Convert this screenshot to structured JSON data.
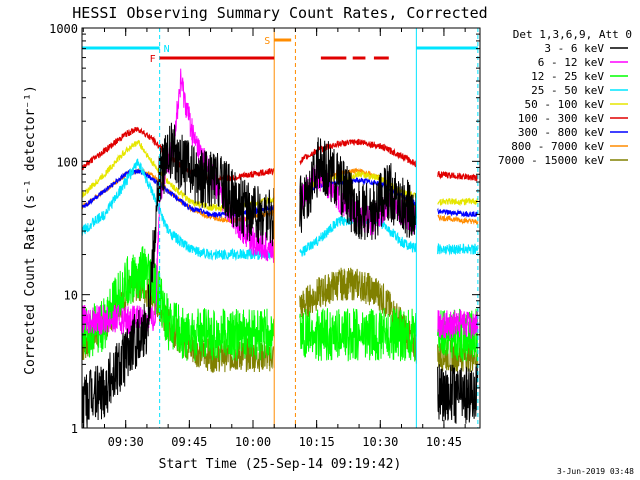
{
  "chart_data": {
    "type": "line",
    "title": "HESSI Observing Summary Count Rates, Corrected",
    "xlabel": "Start Time (25-Sep-14 09:19:42)",
    "ylabel": "Corrected Count Rate (s⁻¹ detector⁻¹)",
    "y_scale": "log",
    "ylim": [
      1,
      1000
    ],
    "xlim": [
      "09:19:42",
      "10:53:30"
    ],
    "x_ticks": [
      "09:30",
      "09:45",
      "10:00",
      "10:15",
      "10:30",
      "10:45"
    ],
    "y_ticks": [
      "1",
      "10",
      "100",
      "1000"
    ],
    "grid": false,
    "legend_position": "right",
    "legend_title": "Det 1,3,6,9, Att 0",
    "footer": "3-Jun-2019 03:48",
    "flags": [
      {
        "label": "N",
        "color": "#00e5ff",
        "segments": [
          [
            "09:19:42",
            "09:38:00"
          ],
          [
            "10:38:30",
            "10:53:00"
          ]
        ]
      },
      {
        "label": "F",
        "color": "#e00000",
        "segments": [
          [
            "09:38:00",
            "10:05:00"
          ],
          [
            "10:16:00",
            "10:22:00"
          ],
          [
            "10:23:30",
            "10:26:30"
          ],
          [
            "10:28:30",
            "10:32:00"
          ]
        ]
      },
      {
        "label": "S",
        "color": "#ff8c00",
        "segments": [
          [
            "10:05:00",
            "10:09:00"
          ]
        ]
      }
    ],
    "vertical_markers": [
      {
        "time": "09:38:00",
        "color": "#00e5ff",
        "style": "dashed"
      },
      {
        "time": "10:05:00",
        "color": "#ff8c00",
        "style": "solid"
      },
      {
        "time": "10:10:00",
        "color": "#ff8c00",
        "style": "dashed"
      },
      {
        "time": "10:38:30",
        "color": "#00e5ff",
        "style": "solid"
      },
      {
        "time": "10:53:00",
        "color": "#00e5ff",
        "style": "dashed"
      }
    ],
    "gaps": [
      [
        "10:05:00",
        "10:11:00"
      ],
      [
        "10:38:30",
        "10:43:30"
      ]
    ],
    "series": [
      {
        "name": "3 - 6 keV",
        "color": "#000000",
        "noise": 0.45,
        "points": [
          [
            "09:19:42",
            1.5
          ],
          [
            "09:25:00",
            2
          ],
          [
            "09:30:00",
            3.5
          ],
          [
            "09:35:00",
            6
          ],
          [
            "09:38:00",
            80
          ],
          [
            "09:41:00",
            120
          ],
          [
            "09:44:00",
            90
          ],
          [
            "09:48:00",
            75
          ],
          [
            "09:52:00",
            70
          ],
          [
            "09:56:00",
            50
          ],
          [
            "10:00:00",
            40
          ],
          [
            "10:05:00",
            38
          ],
          [
            "10:11:00",
            45
          ],
          [
            "10:16:00",
            100
          ],
          [
            "10:20:00",
            70
          ],
          [
            "10:24:00",
            45
          ],
          [
            "10:28:00",
            40
          ],
          [
            "10:32:00",
            60
          ],
          [
            "10:36:00",
            45
          ],
          [
            "10:38:30",
            40
          ],
          [
            "10:43:30",
            1.8
          ],
          [
            "10:48:00",
            1.8
          ],
          [
            "10:53:00",
            1.8
          ]
        ]
      },
      {
        "name": "6 - 12 keV",
        "color": "#ff00ff",
        "noise": 0.22,
        "points": [
          [
            "09:19:42",
            6.5
          ],
          [
            "09:30:00",
            6.5
          ],
          [
            "09:37:00",
            6.5
          ],
          [
            "09:38:00",
            60
          ],
          [
            "09:41:00",
            120
          ],
          [
            "09:43:00",
            400
          ],
          [
            "09:46:00",
            150
          ],
          [
            "09:50:00",
            80
          ],
          [
            "09:55:00",
            40
          ],
          [
            "10:00:00",
            25
          ],
          [
            "10:05:00",
            22
          ],
          [
            "10:11:00",
            50
          ],
          [
            "10:15:00",
            80
          ],
          [
            "10:20:00",
            55
          ],
          [
            "10:24:00",
            40
          ],
          [
            "10:28:00",
            35
          ],
          [
            "10:32:00",
            50
          ],
          [
            "10:36:00",
            40
          ],
          [
            "10:38:30",
            35
          ],
          [
            "10:43:30",
            6
          ],
          [
            "10:53:00",
            6
          ]
        ]
      },
      {
        "name": "12 - 25 keV",
        "color": "#00ff00",
        "noise": 0.4,
        "points": [
          [
            "09:19:42",
            5
          ],
          [
            "09:25:00",
            6
          ],
          [
            "09:30:00",
            12
          ],
          [
            "09:34:00",
            15
          ],
          [
            "09:38:00",
            10
          ],
          [
            "09:40:00",
            6
          ],
          [
            "09:44:00",
            5
          ],
          [
            "10:00:00",
            5
          ],
          [
            "10:05:00",
            5
          ],
          [
            "10:11:00",
            5
          ],
          [
            "10:20:00",
            5
          ],
          [
            "10:38:30",
            5
          ],
          [
            "10:43:30",
            5
          ],
          [
            "10:53:00",
            5
          ]
        ]
      },
      {
        "name": "25 - 50 keV",
        "color": "#00e5ff",
        "noise": 0.08,
        "points": [
          [
            "09:19:42",
            30
          ],
          [
            "09:25:00",
            40
          ],
          [
            "09:30:00",
            70
          ],
          [
            "09:33:00",
            100
          ],
          [
            "09:36:00",
            60
          ],
          [
            "09:40:00",
            30
          ],
          [
            "09:45:00",
            22
          ],
          [
            "09:50:00",
            20
          ],
          [
            "09:55:00",
            20
          ],
          [
            "10:00:00",
            20
          ],
          [
            "10:05:00",
            20
          ],
          [
            "10:11:00",
            20
          ],
          [
            "10:15:00",
            25
          ],
          [
            "10:20:00",
            35
          ],
          [
            "10:25:00",
            38
          ],
          [
            "10:30:00",
            35
          ],
          [
            "10:35:00",
            25
          ],
          [
            "10:38:30",
            22
          ],
          [
            "10:43:30",
            22
          ],
          [
            "10:53:00",
            22
          ]
        ]
      },
      {
        "name": "50 - 100 keV",
        "color": "#e6e600",
        "noise": 0.05,
        "points": [
          [
            "09:19:42",
            55
          ],
          [
            "09:25:00",
            80
          ],
          [
            "09:30:00",
            120
          ],
          [
            "09:33:00",
            140
          ],
          [
            "09:36:00",
            100
          ],
          [
            "09:40:00",
            70
          ],
          [
            "09:45:00",
            50
          ],
          [
            "09:50:00",
            45
          ],
          [
            "09:55:00",
            45
          ],
          [
            "10:00:00",
            48
          ],
          [
            "10:05:00",
            52
          ],
          [
            "10:11:00",
            60
          ],
          [
            "10:15:00",
            70
          ],
          [
            "10:20:00",
            75
          ],
          [
            "10:25:00",
            80
          ],
          [
            "10:30:00",
            75
          ],
          [
            "10:35:00",
            60
          ],
          [
            "10:38:30",
            55
          ],
          [
            "10:43:30",
            50
          ],
          [
            "10:53:00",
            50
          ]
        ]
      },
      {
        "name": "100 - 300 keV",
        "color": "#e00000",
        "noise": 0.05,
        "points": [
          [
            "09:19:42",
            90
          ],
          [
            "09:25:00",
            120
          ],
          [
            "09:30:00",
            160
          ],
          [
            "09:33:00",
            175
          ],
          [
            "09:36:00",
            150
          ],
          [
            "09:40:00",
            110
          ],
          [
            "09:45:00",
            85
          ],
          [
            "09:50:00",
            75
          ],
          [
            "09:55:00",
            75
          ],
          [
            "10:00:00",
            80
          ],
          [
            "10:05:00",
            85
          ],
          [
            "10:11:00",
            100
          ],
          [
            "10:15:00",
            120
          ],
          [
            "10:20:00",
            135
          ],
          [
            "10:25:00",
            140
          ],
          [
            "10:30:00",
            130
          ],
          [
            "10:35:00",
            110
          ],
          [
            "10:38:30",
            95
          ],
          [
            "10:43:30",
            80
          ],
          [
            "10:53:00",
            75
          ]
        ]
      },
      {
        "name": "300 - 800 keV",
        "color": "#0000ff",
        "noise": 0.04,
        "points": [
          [
            "09:19:42",
            45
          ],
          [
            "09:25:00",
            60
          ],
          [
            "09:30:00",
            80
          ],
          [
            "09:33:00",
            85
          ],
          [
            "09:36:00",
            75
          ],
          [
            "09:40:00",
            60
          ],
          [
            "09:45:00",
            45
          ],
          [
            "09:50:00",
            40
          ],
          [
            "09:55:00",
            40
          ],
          [
            "10:00:00",
            42
          ],
          [
            "10:05:00",
            45
          ],
          [
            "10:11:00",
            55
          ],
          [
            "10:15:00",
            65
          ],
          [
            "10:20:00",
            70
          ],
          [
            "10:25:00",
            72
          ],
          [
            "10:30:00",
            68
          ],
          [
            "10:35:00",
            55
          ],
          [
            "10:38:30",
            48
          ],
          [
            "10:43:30",
            42
          ],
          [
            "10:53:00",
            40
          ]
        ]
      },
      {
        "name": "800 - 7000 keV",
        "color": "#ff8c00",
        "noise": 0.04,
        "points": [
          [
            "09:19:42",
            45
          ],
          [
            "09:25:00",
            60
          ],
          [
            "09:30:00",
            80
          ],
          [
            "09:33:00",
            85
          ],
          [
            "09:36:00",
            80
          ],
          [
            "09:40:00",
            60
          ],
          [
            "09:45:00",
            45
          ],
          [
            "09:50:00",
            38
          ],
          [
            "09:55:00",
            36
          ],
          [
            "10:00:00",
            38
          ],
          [
            "10:05:00",
            42
          ],
          [
            "10:11:00",
            55
          ],
          [
            "10:15:00",
            70
          ],
          [
            "10:20:00",
            82
          ],
          [
            "10:25:00",
            85
          ],
          [
            "10:30:00",
            75
          ],
          [
            "10:35:00",
            55
          ],
          [
            "10:38:30",
            45
          ],
          [
            "10:43:30",
            38
          ],
          [
            "10:53:00",
            35
          ]
        ]
      },
      {
        "name": "7000 - 15000 keV",
        "color": "#808000",
        "noise": 0.25,
        "points": [
          [
            "09:19:42",
            4
          ],
          [
            "09:25:00",
            6
          ],
          [
            "09:30:00",
            10
          ],
          [
            "09:33:00",
            12
          ],
          [
            "09:36:00",
            10
          ],
          [
            "09:40:00",
            6
          ],
          [
            "09:45:00",
            4
          ],
          [
            "09:50:00",
            3.5
          ],
          [
            "09:55:00",
            3.5
          ],
          [
            "10:00:00",
            3.5
          ],
          [
            "10:05:00",
            3.5
          ],
          [
            "10:11:00",
            8
          ],
          [
            "10:15:00",
            10
          ],
          [
            "10:20:00",
            12
          ],
          [
            "10:25:00",
            12
          ],
          [
            "10:30:00",
            10
          ],
          [
            "10:35:00",
            6
          ],
          [
            "10:38:30",
            4
          ],
          [
            "10:43:30",
            3.5
          ],
          [
            "10:53:00",
            3.5
          ]
        ]
      }
    ]
  }
}
